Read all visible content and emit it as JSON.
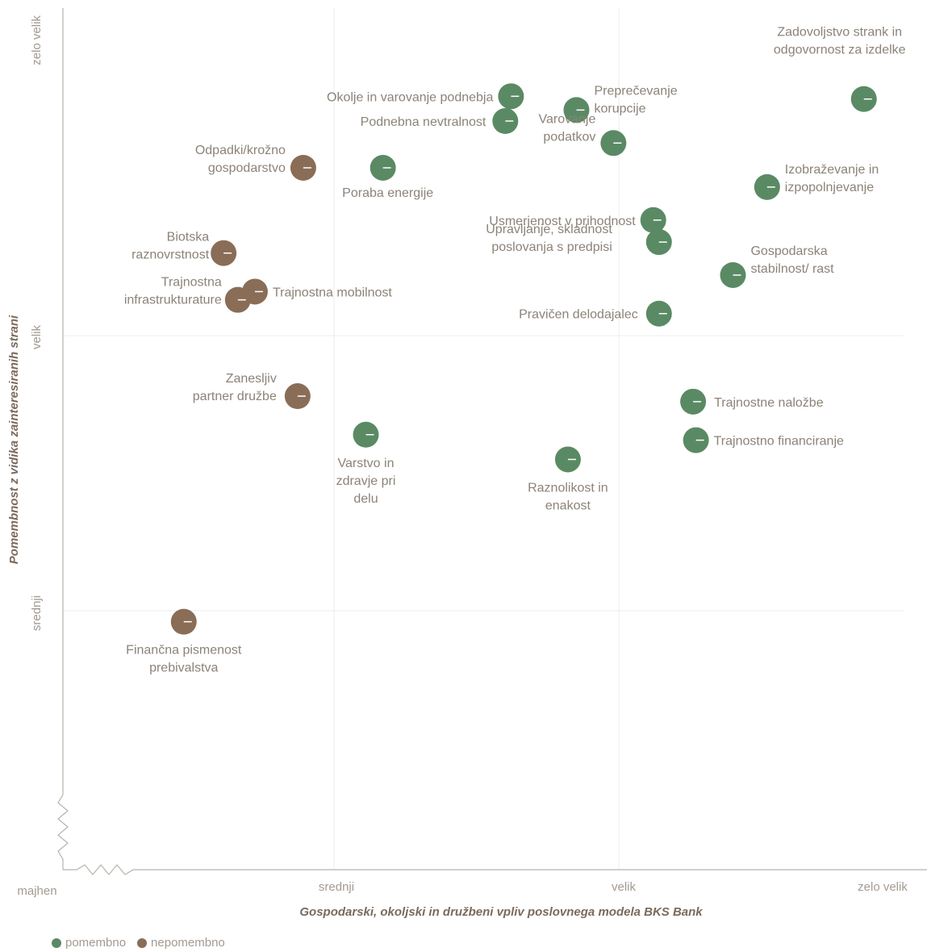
{
  "chart_data": {
    "type": "scatter",
    "title": "",
    "xlabel": "Gospodarski, okoljski in družbeni vpliv poslovnega modela BKS Bank",
    "ylabel": "Pomembnost z vidika zainteresiranih strani",
    "x_ticks": [
      "majhen",
      "srednji",
      "velik",
      "zelo velik"
    ],
    "y_ticks": [
      "srednji",
      "velik",
      "zelo velik"
    ],
    "xlim": [
      0,
      3
    ],
    "ylim": [
      0,
      3
    ],
    "grid": true,
    "legend_position": "bottom-left",
    "series": [
      {
        "name": "pomembno",
        "color": "#5a8a64",
        "points": [
          {
            "label": "Okolje in varovanje podnebja",
            "x": 1.62,
            "y": 2.87
          },
          {
            "label": "Podnebna nevtralnost",
            "x": 1.6,
            "y": 2.78
          },
          {
            "label": "Preprečevanje korupcije",
            "x": 1.85,
            "y": 2.82
          },
          {
            "label": "Zadovoljstvo strank in odgovornost za izdelke",
            "x": 2.86,
            "y": 2.86
          },
          {
            "label": "Varovanje podatkov",
            "x": 1.98,
            "y": 2.7
          },
          {
            "label": "Poraba energije",
            "x": 1.17,
            "y": 2.61
          },
          {
            "label": "Izobraževanje in izpopolnjevanje",
            "x": 2.52,
            "y": 2.54
          },
          {
            "label": "Usmerjenost v prihodnost",
            "x": 2.12,
            "y": 2.42
          },
          {
            "label": "Upravljanje, skladnost poslovanja s predpisi",
            "x": 2.14,
            "y": 2.34
          },
          {
            "label": "Gospodarska stabilnost/ rast",
            "x": 2.4,
            "y": 2.22
          },
          {
            "label": "Pravičen delodajalec",
            "x": 2.14,
            "y": 2.08
          },
          {
            "label": "Trajnostne naložbe",
            "x": 2.26,
            "y": 1.76
          },
          {
            "label": "Trajnostno financiranje",
            "x": 2.27,
            "y": 1.62
          },
          {
            "label": "Varstvo in zdravje pri delu",
            "x": 1.11,
            "y": 1.64
          },
          {
            "label": "Raznolikost in enakost",
            "x": 1.82,
            "y": 1.55
          }
        ]
      },
      {
        "name": "nepomembno",
        "color": "#8a6d57",
        "points": [
          {
            "label": "Odpadki/krožno gospodarstvo",
            "x": 0.89,
            "y": 2.61
          },
          {
            "label": "Biotska raznovrstnost",
            "x": 0.61,
            "y": 2.3
          },
          {
            "label": "Trajnostna mobilnost",
            "x": 0.72,
            "y": 2.16
          },
          {
            "label": "Trajnostna infrastrukturature",
            "x": 0.66,
            "y": 2.13
          },
          {
            "label": "Zanesljiv partner družbe",
            "x": 0.87,
            "y": 1.78
          },
          {
            "label": "Finančna pismenost prebivalstva",
            "x": 0.47,
            "y": 0.96
          }
        ]
      }
    ]
  },
  "legend": {
    "items": [
      {
        "label": "pomembno",
        "color": "#5a8a64"
      },
      {
        "label": "nepomembno",
        "color": "#8a6d57"
      }
    ]
  }
}
